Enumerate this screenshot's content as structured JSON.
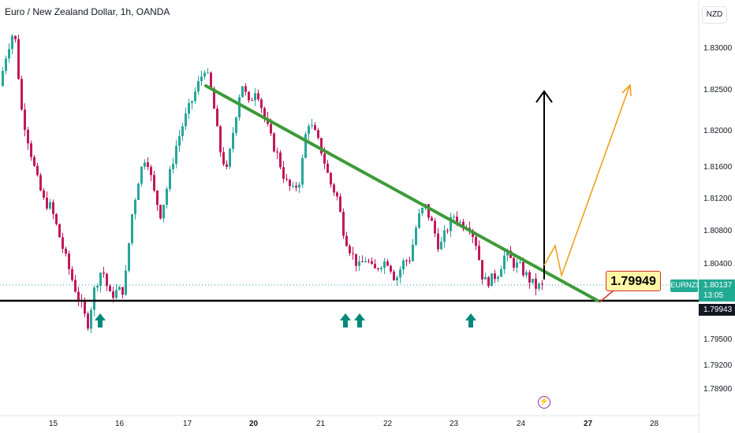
{
  "header": {
    "title": "Euro / New Zealand Dollar, 1h, OANDA",
    "currency_button": "NZD"
  },
  "price_axis": {
    "labels": [
      "1.83000",
      "1.82500",
      "1.82000",
      "1.81600",
      "1.81200",
      "1.80800",
      "1.80400",
      "1.79500",
      "1.79200",
      "1.78900"
    ]
  },
  "time_axis": {
    "labels": [
      {
        "text": "15",
        "bold": false
      },
      {
        "text": "16",
        "bold": false
      },
      {
        "text": "17",
        "bold": false
      },
      {
        "text": "20",
        "bold": true
      },
      {
        "text": "21",
        "bold": false
      },
      {
        "text": "22",
        "bold": false
      },
      {
        "text": "23",
        "bold": false
      },
      {
        "text": "24",
        "bold": false
      },
      {
        "text": "27",
        "bold": true
      },
      {
        "text": "28",
        "bold": false
      }
    ]
  },
  "labels": {
    "symbol": "EURNZD",
    "last_price": "1.80137",
    "countdown": "13:05",
    "support_level": "1.79943",
    "callout_value": "1.79949",
    "flash_icon": "⚡"
  },
  "colors": {
    "up": "#26a69a",
    "down": "#c2185b",
    "trendline": "#3d9a38",
    "support": "#000000",
    "projection": "#f0a020",
    "arrow_up": "#00897b",
    "callout_bg": "#fff8a6",
    "callout_border": "#d32f2f"
  },
  "chart_data": {
    "type": "candlestick",
    "title": "Euro / New Zealand Dollar, 1h, OANDA",
    "y_range": [
      1.788,
      1.8315
    ],
    "support_level": 1.79943,
    "last_price": 1.80137,
    "trendline": {
      "from": {
        "date": "17 (late)",
        "price": 1.8254
      },
      "to": {
        "date": "27",
        "price": 1.7994
      }
    },
    "support_touch_arrows": 4,
    "close_path": [
      1.8225,
      1.8262,
      1.8285,
      1.82,
      1.8165,
      1.813,
      1.8105,
      1.8098,
      1.8072,
      1.8045,
      1.802,
      1.7998,
      1.7975,
      1.8015,
      1.8035,
      1.8005,
      1.801,
      1.8012,
      1.8088,
      1.813,
      1.8155,
      1.8115,
      1.809,
      1.8125,
      1.816,
      1.8185,
      1.8205,
      1.8225,
      1.8245,
      1.8215,
      1.816,
      1.8135,
      1.8185,
      1.823,
      1.8205,
      1.8225,
      1.8195,
      1.817,
      1.815,
      1.8125,
      1.8115,
      1.8128,
      1.819,
      1.8175,
      1.8155,
      1.8125,
      1.811,
      1.807,
      1.805,
      1.8035,
      1.8045,
      1.803,
      1.804,
      1.8042,
      1.8022,
      1.804,
      1.8045,
      1.8085,
      1.81,
      1.808,
      1.8055,
      1.8075,
      1.809,
      1.808,
      1.8082,
      1.806,
      1.802,
      1.8022,
      1.803,
      1.805,
      1.804,
      1.8035,
      1.8025,
      1.8015,
      1.8015
    ]
  }
}
